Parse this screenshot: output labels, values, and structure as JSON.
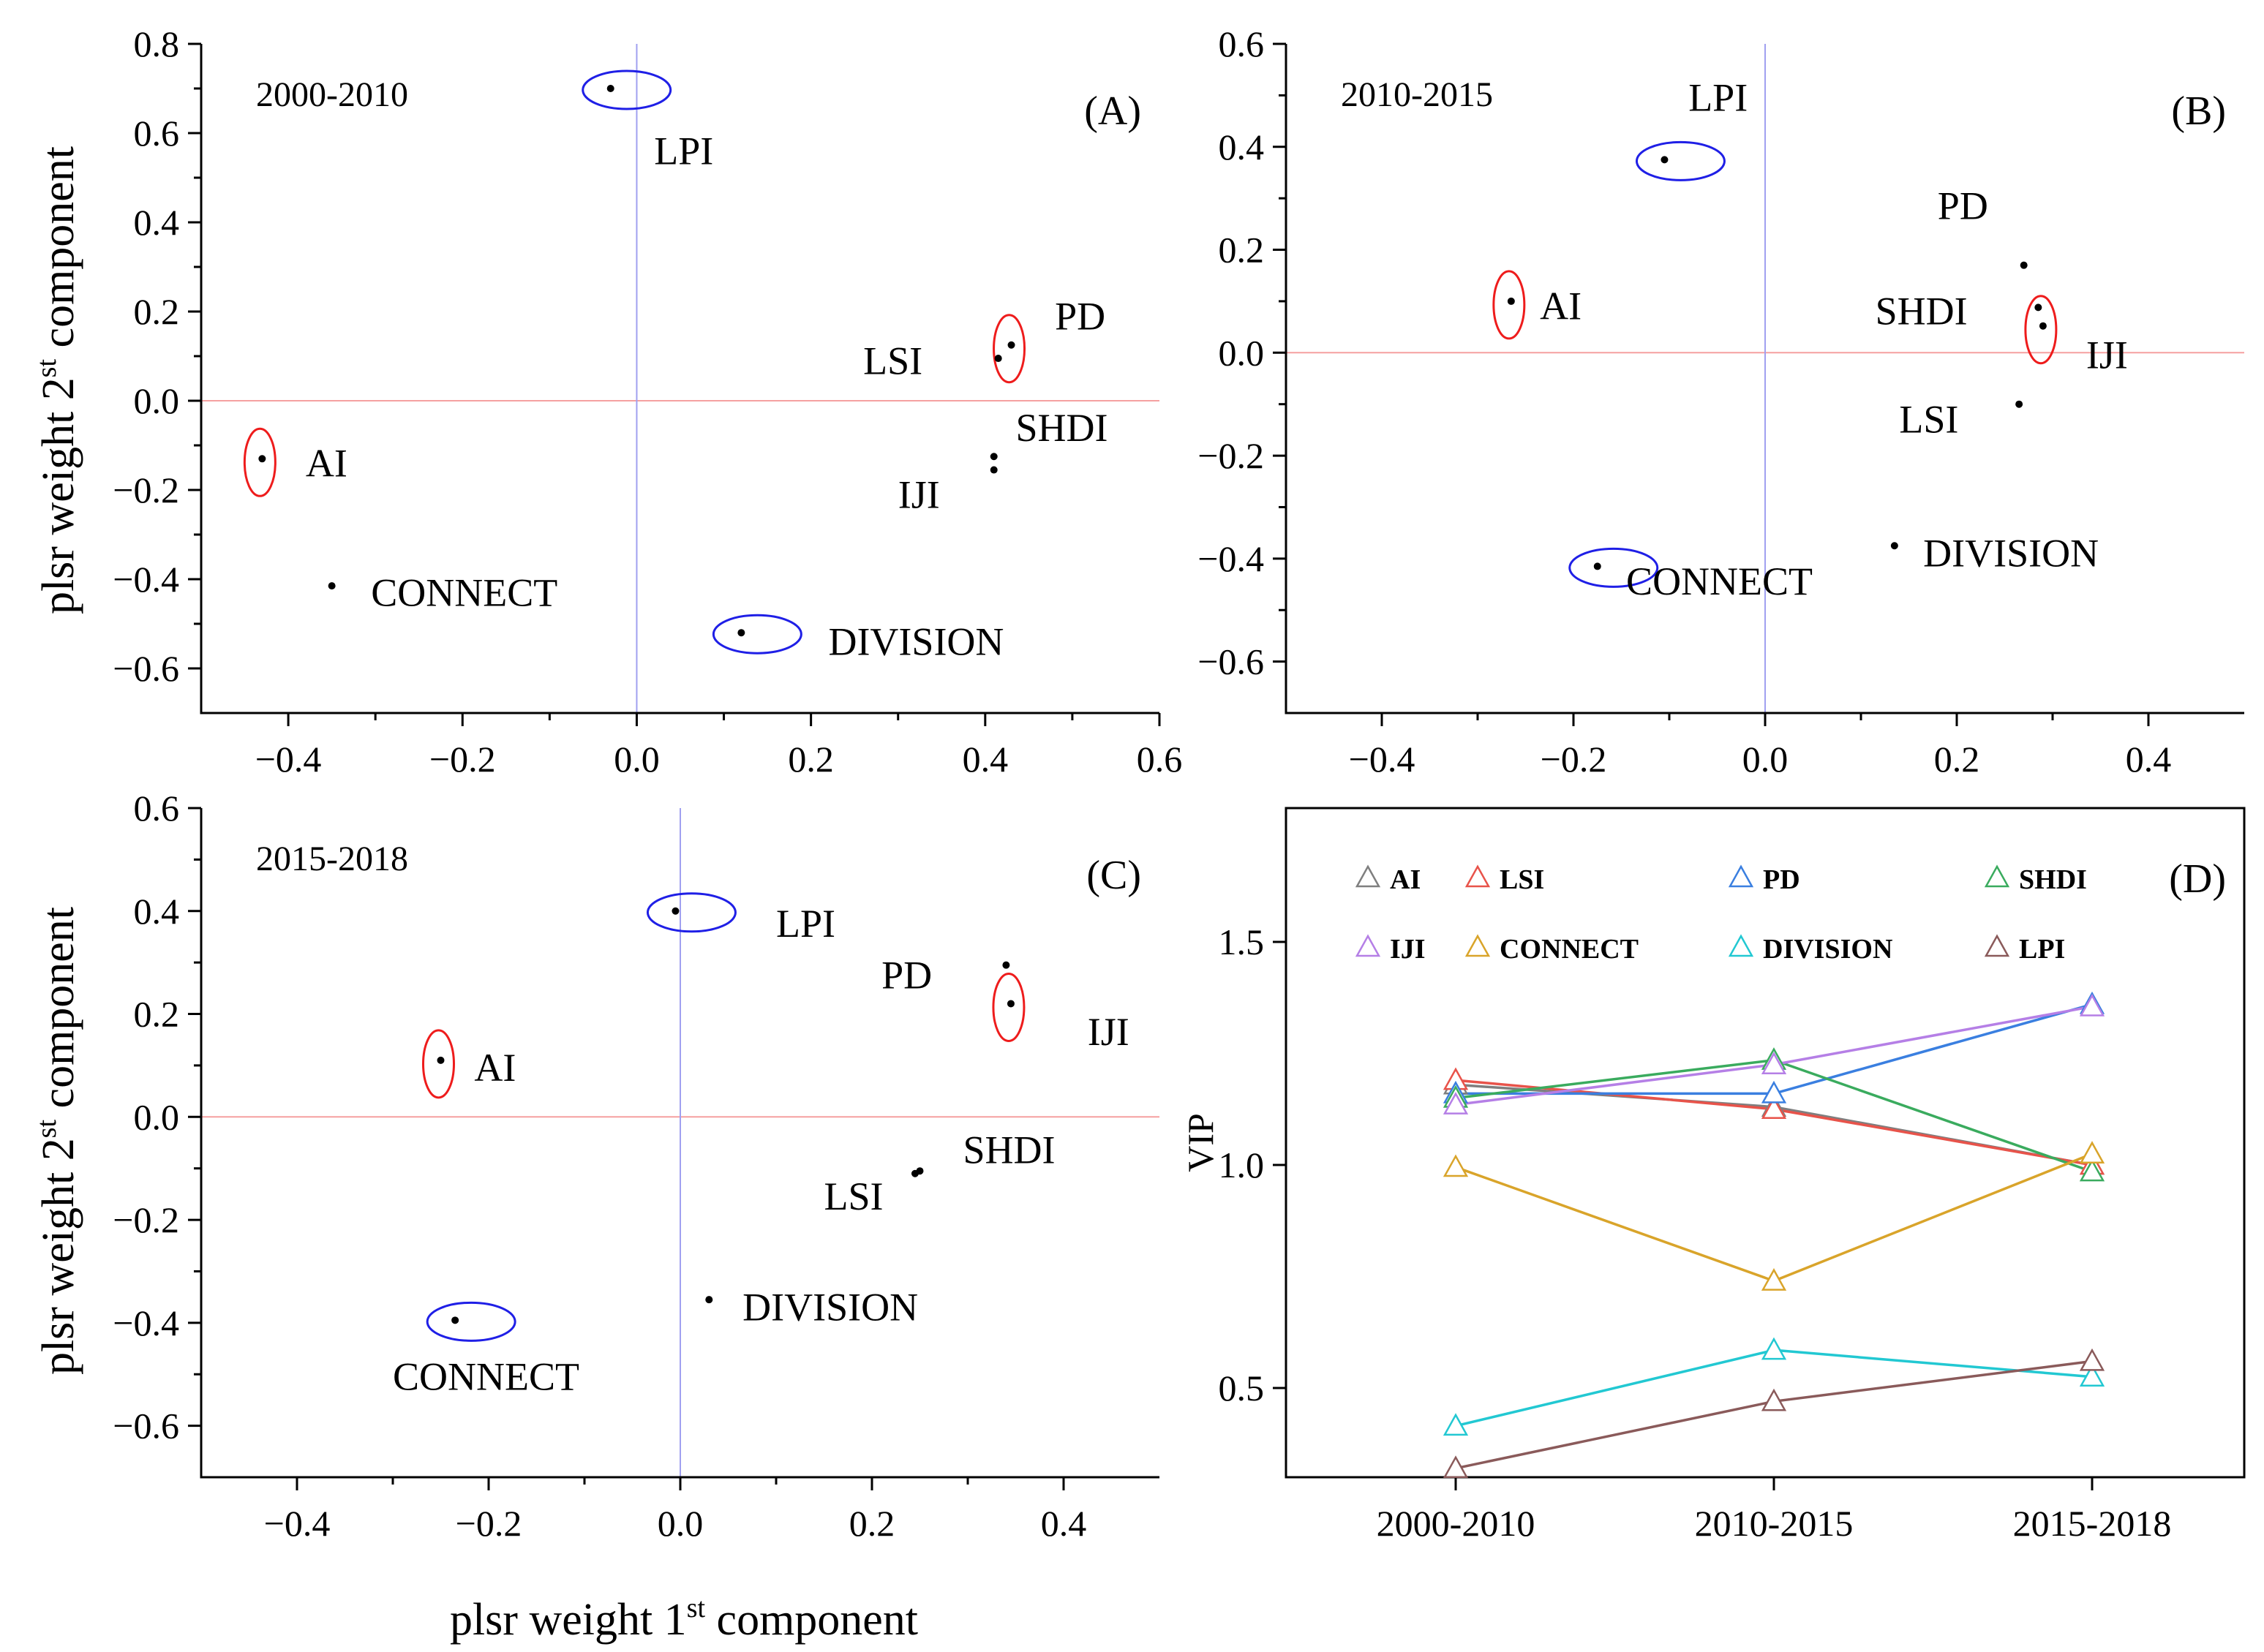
{
  "figure": {
    "ylabel": "plsr weight 2st component",
    "xlabel": "plsr weight 1st component",
    "ylabel_main": "plsr weight 2",
    "ylabel_sup": "st",
    "ylabel_tail": " component",
    "xlabel_main": "plsr weight 1",
    "xlabel_sup": "st",
    "xlabel_tail": " component"
  },
  "colors": {
    "red_ellipse": "#ee1c1c",
    "blue_ellipse": "#1f1fe6",
    "zero_h": "#f5a0a0",
    "zero_v": "#a0a0f0"
  },
  "chart_data": [
    {
      "type": "scatter",
      "panel": "(A)",
      "period": "2000-2010",
      "xlim": [
        -0.5,
        0.6
      ],
      "ylim": [
        -0.7,
        0.8
      ],
      "xticks": [
        "−0.4",
        "−0.2",
        "0.0",
        "0.2",
        "0.4",
        "0.6"
      ],
      "xtick_values": [
        -0.4,
        -0.2,
        0.0,
        0.2,
        0.4,
        0.6
      ],
      "yticks": [
        "0.8",
        "0.6",
        "0.4",
        "0.2",
        "0.0",
        "−0.2",
        "−0.4",
        "−0.6"
      ],
      "ytick_values": [
        0.8,
        0.6,
        0.4,
        0.2,
        0.0,
        -0.2,
        -0.4,
        -0.6
      ],
      "points": [
        {
          "label": "LPI",
          "x": -0.03,
          "y": 0.7,
          "ellipse": "blue",
          "lx": 0.02,
          "ly": 0.53
        },
        {
          "label": "PD",
          "x": 0.43,
          "y": 0.125,
          "ellipse": "red",
          "lx": 0.48,
          "ly": 0.16
        },
        {
          "label": "LSI",
          "x": 0.415,
          "y": 0.095,
          "ellipse": null,
          "lx": 0.26,
          "ly": 0.06
        },
        {
          "label": "SHDI",
          "x": 0.41,
          "y": -0.125,
          "ellipse": null,
          "lx": 0.435,
          "ly": -0.09
        },
        {
          "label": "IJI",
          "x": 0.41,
          "y": -0.155,
          "ellipse": null,
          "lx": 0.3,
          "ly": -0.24
        },
        {
          "label": "AI",
          "x": -0.43,
          "y": -0.13,
          "ellipse": "red",
          "lx": -0.38,
          "ly": -0.17
        },
        {
          "label": "CONNECT",
          "x": -0.35,
          "y": -0.415,
          "ellipse": null,
          "lx": -0.305,
          "ly": -0.46
        },
        {
          "label": "DIVISION",
          "x": 0.12,
          "y": -0.52,
          "ellipse": "blue",
          "lx": 0.22,
          "ly": -0.57
        }
      ]
    },
    {
      "type": "scatter",
      "panel": "(B)",
      "period": "2010-2015",
      "xlim": [
        -0.5,
        0.5
      ],
      "ylim": [
        -0.7,
        0.6
      ],
      "xticks": [
        "−0.4",
        "−0.2",
        "0.0",
        "0.2",
        "0.4"
      ],
      "xtick_values": [
        -0.4,
        -0.2,
        0.0,
        0.2,
        0.4
      ],
      "yticks": [
        "0.6",
        "0.4",
        "0.2",
        "0.0",
        "−0.2",
        "−0.4",
        "−0.6"
      ],
      "ytick_values": [
        0.6,
        0.4,
        0.2,
        0.0,
        -0.2,
        -0.4,
        -0.6
      ],
      "points": [
        {
          "label": "LPI",
          "x": -0.105,
          "y": 0.375,
          "ellipse": "blue",
          "lx": -0.08,
          "ly": 0.47
        },
        {
          "label": "PD",
          "x": 0.27,
          "y": 0.17,
          "ellipse": null,
          "lx": 0.18,
          "ly": 0.26
        },
        {
          "label": "SHDI",
          "x": 0.285,
          "y": 0.088,
          "ellipse": null,
          "lx": 0.115,
          "ly": 0.055
        },
        {
          "label": "IJI",
          "x": 0.29,
          "y": 0.052,
          "ellipse": "red",
          "lx": 0.335,
          "ly": -0.03
        },
        {
          "label": "AI",
          "x": -0.265,
          "y": 0.1,
          "ellipse": "red",
          "lx": -0.235,
          "ly": 0.065
        },
        {
          "label": "LSI",
          "x": 0.265,
          "y": -0.1,
          "ellipse": null,
          "lx": 0.14,
          "ly": -0.155
        },
        {
          "label": "CONNECT",
          "x": -0.175,
          "y": -0.415,
          "ellipse": "blue",
          "lx": -0.145,
          "ly": -0.47
        },
        {
          "label": "DIVISION",
          "x": 0.135,
          "y": -0.375,
          "ellipse": null,
          "lx": 0.165,
          "ly": -0.415
        }
      ]
    },
    {
      "type": "scatter",
      "panel": "(C)",
      "period": "2015-2018",
      "xlim": [
        -0.5,
        0.5
      ],
      "ylim": [
        -0.7,
        0.6
      ],
      "xticks": [
        "−0.4",
        "−0.2",
        "0.0",
        "0.2",
        "0.4"
      ],
      "xtick_values": [
        -0.4,
        -0.2,
        0.0,
        0.2,
        0.4
      ],
      "yticks": [
        "0.6",
        "0.4",
        "0.2",
        "0.0",
        "−0.2",
        "−0.4",
        "−0.6"
      ],
      "ytick_values": [
        0.6,
        0.4,
        0.2,
        0.0,
        -0.2,
        -0.4,
        -0.6
      ],
      "points": [
        {
          "label": "LPI",
          "x": -0.005,
          "y": 0.4,
          "ellipse": "blue",
          "lx": 0.1,
          "ly": 0.35
        },
        {
          "label": "PD",
          "x": 0.34,
          "y": 0.295,
          "ellipse": null,
          "lx": 0.21,
          "ly": 0.25
        },
        {
          "label": "IJI",
          "x": 0.345,
          "y": 0.22,
          "ellipse": "red",
          "lx": 0.425,
          "ly": 0.14
        },
        {
          "label": "AI",
          "x": -0.25,
          "y": 0.11,
          "ellipse": "red",
          "lx": -0.215,
          "ly": 0.07
        },
        {
          "label": "SHDI",
          "x": 0.25,
          "y": -0.105,
          "ellipse": null,
          "lx": 0.295,
          "ly": -0.09
        },
        {
          "label": "LSI",
          "x": 0.245,
          "y": -0.11,
          "ellipse": null,
          "lx": 0.15,
          "ly": -0.18
        },
        {
          "label": "CONNECT",
          "x": -0.235,
          "y": -0.395,
          "ellipse": "blue",
          "lx": -0.3,
          "ly": -0.53
        },
        {
          "label": "DIVISION",
          "x": 0.03,
          "y": -0.355,
          "ellipse": null,
          "lx": 0.065,
          "ly": -0.395
        }
      ]
    },
    {
      "type": "line",
      "panel": "(D)",
      "ylabel": "VIP",
      "categories": [
        "2000-2010",
        "2010-2015",
        "2015-2018"
      ],
      "ylim": [
        0.3,
        1.8
      ],
      "yticks": [
        "1.5",
        "1.0",
        "0.5"
      ],
      "ytick_values": [
        1.5,
        1.0,
        0.5
      ],
      "series": [
        {
          "name": "AI",
          "color": "#7f7f7f",
          "values": [
            1.18,
            1.13,
            1.0
          ]
        },
        {
          "name": "LSI",
          "color": "#e8534a",
          "values": [
            1.19,
            1.125,
            1.0
          ]
        },
        {
          "name": "PD",
          "color": "#3a7fe0",
          "values": [
            1.16,
            1.16,
            1.36
          ]
        },
        {
          "name": "SHDI",
          "color": "#3aab5e",
          "values": [
            1.15,
            1.235,
            0.985
          ]
        },
        {
          "name": "IJI",
          "color": "#b57fe6",
          "values": [
            1.135,
            1.225,
            1.355
          ]
        },
        {
          "name": "CONNECT",
          "color": "#d9a42a",
          "values": [
            0.995,
            0.74,
            1.025
          ]
        },
        {
          "name": "DIVISION",
          "color": "#22c8d2",
          "values": [
            0.415,
            0.585,
            0.525
          ]
        },
        {
          "name": "LPI",
          "color": "#8a5a5a",
          "values": [
            0.32,
            0.47,
            0.56
          ]
        }
      ]
    }
  ]
}
